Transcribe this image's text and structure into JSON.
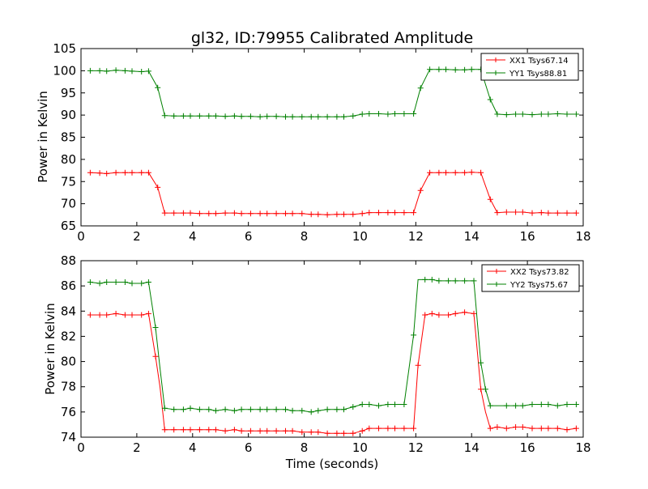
{
  "title": "gl32, ID:79955 Calibrated Amplitude",
  "chart_data": [
    {
      "type": "line",
      "ylabel": "Power in Kelvin",
      "xlabel": "",
      "xlim": [
        0,
        18
      ],
      "ylim": [
        65,
        105
      ],
      "xticks": [
        0,
        2,
        4,
        6,
        8,
        10,
        12,
        14,
        16,
        18
      ],
      "yticks": [
        65,
        70,
        75,
        80,
        85,
        90,
        95,
        100,
        105
      ],
      "grid": false,
      "legend": "top-right",
      "x": [
        0.33,
        0.67,
        0.92,
        1.25,
        1.58,
        1.83,
        2.17,
        2.42,
        2.75,
        3.0,
        3.33,
        3.67,
        3.92,
        4.25,
        4.58,
        4.83,
        5.17,
        5.5,
        5.75,
        6.08,
        6.42,
        6.67,
        7.0,
        7.33,
        7.58,
        7.92,
        8.25,
        8.5,
        8.83,
        9.17,
        9.42,
        9.75,
        10.08,
        10.33,
        10.67,
        11.0,
        11.25,
        11.58,
        11.92,
        12.17,
        12.5,
        12.83,
        13.08,
        13.42,
        13.75,
        14.0,
        14.33,
        14.67,
        14.92,
        15.25,
        15.58,
        15.83,
        16.17,
        16.5,
        16.75,
        17.08,
        17.42,
        17.75
      ],
      "series": [
        {
          "name": "XX1 Tsys67.14",
          "color": "#ff0000",
          "values": [
            77.0,
            76.9,
            76.8,
            77.0,
            77.0,
            77.0,
            77.0,
            77.0,
            73.7,
            67.9,
            67.9,
            67.9,
            67.9,
            67.8,
            67.8,
            67.8,
            67.9,
            67.9,
            67.8,
            67.8,
            67.8,
            67.8,
            67.8,
            67.8,
            67.8,
            67.8,
            67.6,
            67.6,
            67.5,
            67.6,
            67.6,
            67.6,
            67.8,
            68.0,
            68.0,
            68.0,
            68.0,
            68.0,
            68.0,
            73.0,
            77.0,
            77.0,
            77.0,
            77.0,
            77.0,
            77.1,
            77.0,
            71.0,
            68.0,
            68.1,
            68.1,
            68.1,
            67.9,
            68.0,
            67.9,
            67.9,
            67.9,
            67.9
          ]
        },
        {
          "name": "YY1 Tsys88.81",
          "color": "#008000",
          "values": [
            100.0,
            100.0,
            99.9,
            100.1,
            100.0,
            99.9,
            99.8,
            99.9,
            96.2,
            89.9,
            89.8,
            89.8,
            89.8,
            89.8,
            89.8,
            89.8,
            89.7,
            89.8,
            89.7,
            89.7,
            89.6,
            89.7,
            89.7,
            89.6,
            89.6,
            89.6,
            89.6,
            89.6,
            89.6,
            89.6,
            89.6,
            89.8,
            90.2,
            90.3,
            90.3,
            90.2,
            90.3,
            90.3,
            90.3,
            96.1,
            100.3,
            100.3,
            100.3,
            100.2,
            100.2,
            100.3,
            100.3,
            93.5,
            90.2,
            90.1,
            90.2,
            90.2,
            90.1,
            90.2,
            90.2,
            90.3,
            90.2,
            90.2
          ]
        }
      ]
    },
    {
      "type": "line",
      "ylabel": "Power in Kelvin",
      "xlabel": "Time (seconds)",
      "xlim": [
        0,
        18
      ],
      "ylim": [
        74,
        88
      ],
      "xticks": [
        0,
        2,
        4,
        6,
        8,
        10,
        12,
        14,
        16,
        18
      ],
      "yticks": [
        74,
        76,
        78,
        80,
        82,
        84,
        86,
        88
      ],
      "grid": false,
      "legend": "top-right",
      "x": [
        0.33,
        0.67,
        0.92,
        1.25,
        1.58,
        1.83,
        2.17,
        2.42,
        2.67,
        2.83,
        3.0,
        3.33,
        3.67,
        3.92,
        4.25,
        4.58,
        4.83,
        5.17,
        5.5,
        5.75,
        6.08,
        6.42,
        6.67,
        7.0,
        7.33,
        7.58,
        7.92,
        8.25,
        8.5,
        8.83,
        9.17,
        9.42,
        9.75,
        10.08,
        10.33,
        10.67,
        11.0,
        11.25,
        11.58,
        11.92,
        12.08,
        12.33,
        12.58,
        12.83,
        13.17,
        13.42,
        13.75,
        14.08,
        14.33,
        14.5,
        14.67,
        14.92,
        15.25,
        15.58,
        15.83,
        16.17,
        16.5,
        16.75,
        17.08,
        17.42,
        17.75
      ],
      "series": [
        {
          "name": "XX2 Tsys73.82",
          "color": "#ff0000",
          "values": [
            83.7,
            83.7,
            83.7,
            83.8,
            83.7,
            83.7,
            83.7,
            83.8,
            80.4,
            78.0,
            74.6,
            74.6,
            74.6,
            74.6,
            74.6,
            74.6,
            74.6,
            74.5,
            74.6,
            74.5,
            74.5,
            74.5,
            74.5,
            74.5,
            74.5,
            74.5,
            74.4,
            74.4,
            74.4,
            74.3,
            74.3,
            74.3,
            74.3,
            74.5,
            74.7,
            74.7,
            74.7,
            74.7,
            74.7,
            74.7,
            79.7,
            83.7,
            83.8,
            83.7,
            83.7,
            83.8,
            83.9,
            83.8,
            77.8,
            76.0,
            74.7,
            74.8,
            74.7,
            74.8,
            74.8,
            74.7,
            74.7,
            74.7,
            74.7,
            74.6,
            74.7
          ],
          "plot_indices": [
            0,
            1,
            2,
            3,
            4,
            5,
            6,
            7,
            8,
            10,
            11,
            12,
            13,
            14,
            15,
            16,
            17,
            18,
            19,
            20,
            21,
            22,
            23,
            24,
            25,
            26,
            27,
            28,
            29,
            30,
            31,
            32,
            33,
            34,
            35,
            36,
            37,
            38,
            39,
            40,
            41,
            42,
            43,
            44,
            45,
            46,
            47,
            48,
            50,
            51,
            52,
            53,
            54,
            55,
            56,
            57,
            58,
            59,
            60
          ]
        },
        {
          "name": "YY2 Tsys75.67",
          "color": "#008000",
          "values": [
            86.3,
            86.2,
            86.3,
            86.3,
            86.3,
            86.2,
            86.2,
            86.3,
            82.7,
            79.5,
            76.3,
            76.2,
            76.2,
            76.3,
            76.2,
            76.2,
            76.1,
            76.2,
            76.1,
            76.2,
            76.2,
            76.2,
            76.2,
            76.2,
            76.2,
            76.1,
            76.1,
            76.0,
            76.1,
            76.2,
            76.2,
            76.2,
            76.4,
            76.6,
            76.6,
            76.5,
            76.6,
            76.6,
            76.6,
            82.1,
            86.5,
            86.5,
            86.5,
            86.4,
            86.4,
            86.4,
            86.4,
            86.4,
            79.9,
            77.8,
            76.5,
            76.5,
            76.5,
            76.5,
            76.5,
            76.6,
            76.6,
            76.6,
            76.5,
            76.6,
            76.6
          ],
          "plot_indices": [
            0,
            1,
            2,
            3,
            4,
            5,
            6,
            7,
            8,
            10,
            11,
            12,
            13,
            14,
            15,
            16,
            17,
            18,
            19,
            20,
            21,
            22,
            23,
            24,
            25,
            26,
            27,
            28,
            29,
            30,
            31,
            32,
            33,
            34,
            35,
            36,
            37,
            38,
            39,
            41,
            42,
            43,
            44,
            45,
            46,
            47,
            48,
            49,
            50,
            52,
            53,
            54,
            55,
            56,
            57,
            58,
            59,
            60
          ]
        }
      ]
    }
  ]
}
